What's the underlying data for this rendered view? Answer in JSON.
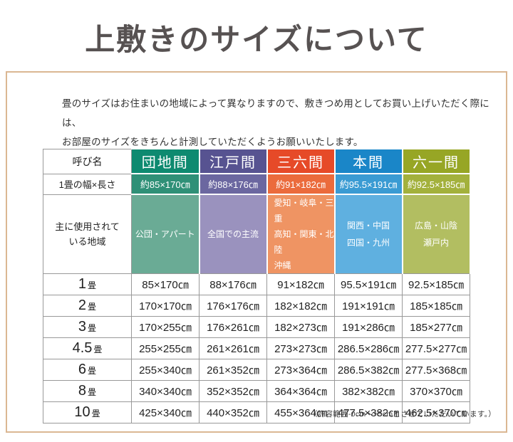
{
  "title": "上敷きのサイズについて",
  "intro": {
    "line1": "畳のサイズはお住まいの地域によって異なりますので、敷きつめ用としてお買い上げいただく際には、",
    "line2": "お部屋のサイズをきちんと計測していただくようお願いいたします。"
  },
  "table": {
    "corner_label": "呼び名",
    "row_width_label": "1畳の幅×長さ",
    "row_region_label": [
      "主に使用されて",
      "いる地域"
    ],
    "columns": [
      {
        "name": "団地間",
        "size": "約85×170㎝",
        "regions": [
          "公団・アパート"
        ],
        "colors": {
          "header": "#0E8A70",
          "mid": "#2F9077",
          "light": "#6AAB95"
        }
      },
      {
        "name": "江戸間",
        "size": "約88×176㎝",
        "regions": [
          "全国での主流"
        ],
        "colors": {
          "header": "#575391",
          "mid": "#6B67A0",
          "light": "#9A92BE"
        }
      },
      {
        "name": "三六間",
        "size": "約91×182㎝",
        "regions": [
          "愛知・岐阜・三重",
          "高知・関東・北陸",
          "沖縄"
        ],
        "colors": {
          "header": "#E64A28",
          "mid": "#EB6B3C",
          "light": "#EF9463"
        }
      },
      {
        "name": "本間",
        "size": "約95.5×191㎝",
        "regions": [
          "関西・中国",
          "四国・九州"
        ],
        "colors": {
          "header": "#1A86C8",
          "mid": "#3A9BD3",
          "light": "#5FB0E0"
        }
      },
      {
        "name": "六一間",
        "size": "約92.5×185㎝",
        "regions": [
          "広島・山陰",
          "瀬戸内"
        ],
        "colors": {
          "header": "#97A625",
          "mid": "#A3B13C",
          "light": "#B2BE61"
        }
      }
    ],
    "size_rows": [
      {
        "label": "1",
        "unit": "畳",
        "values": [
          "85×170㎝",
          "88×176㎝",
          "91×182㎝",
          "95.5×191㎝",
          "92.5×185㎝"
        ]
      },
      {
        "label": "2",
        "unit": "畳",
        "values": [
          "170×170㎝",
          "176×176㎝",
          "182×182㎝",
          "191×191㎝",
          "185×185㎝"
        ]
      },
      {
        "label": "3",
        "unit": "畳",
        "values": [
          "170×255㎝",
          "176×261㎝",
          "182×273㎝",
          "191×286㎝",
          "185×277㎝"
        ]
      },
      {
        "label": "4.5",
        "unit": "畳",
        "values": [
          "255×255㎝",
          "261×261㎝",
          "273×273㎝",
          "286.5×286㎝",
          "277.5×277㎝"
        ]
      },
      {
        "label": "6",
        "unit": "畳",
        "values": [
          "255×340㎝",
          "261×352㎝",
          "273×364㎝",
          "286.5×382㎝",
          "277.5×368㎝"
        ]
      },
      {
        "label": "8",
        "unit": "畳",
        "values": [
          "340×340㎝",
          "352×352㎝",
          "364×364㎝",
          "382×382㎝",
          "370×370㎝"
        ]
      },
      {
        "label": "10",
        "unit": "畳",
        "values": [
          "425×340㎝",
          "440×352㎝",
          "455×364㎝",
          "477.5×382㎝",
          "462.5×370㎝"
        ]
      }
    ]
  },
  "footnote": "（許容範囲-0cm～+5cmとさせていただいています。）",
  "frame_color": "#DBB793"
}
